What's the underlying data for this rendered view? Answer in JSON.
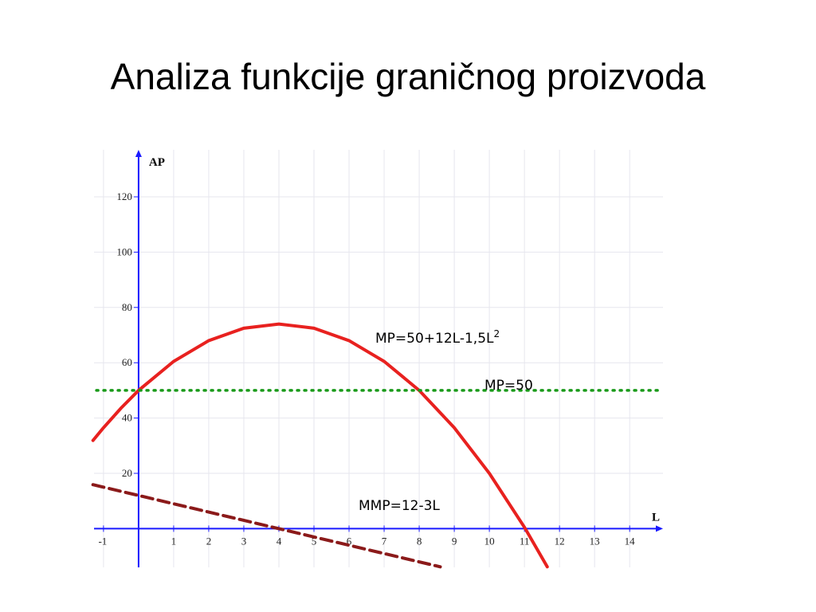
{
  "title": "Analiza funkcije graničnog proizvoda",
  "chart_data": {
    "type": "line",
    "x_label": "L",
    "y_label": "AP",
    "xlim": [
      -1.27,
      14.95
    ],
    "ylim": [
      -14,
      137
    ],
    "xticks": [
      -1,
      1,
      2,
      3,
      4,
      5,
      6,
      7,
      8,
      9,
      10,
      11,
      12,
      13,
      14
    ],
    "yticks": [
      20,
      40,
      60,
      80,
      100,
      120
    ],
    "grid": true,
    "axis_color": "#1a1aff",
    "series": [
      {
        "name": "MP=50+12L-1,5L²",
        "color": "#e8211f",
        "line_style": "solid",
        "x": [
          -1.3,
          -1,
          -0.5,
          0,
          1,
          2,
          3,
          4,
          5,
          6,
          7,
          8,
          9,
          10,
          11,
          11.65
        ],
        "values": [
          31.9,
          36.5,
          43.6,
          50,
          60.5,
          68,
          72.5,
          74,
          72.5,
          68,
          60.5,
          50,
          36.5,
          20,
          0.5,
          -13.8
        ]
      },
      {
        "name": "MP=50",
        "color": "#1a9a1a",
        "line_style": "dotted",
        "x": [
          -1.2,
          14.8
        ],
        "values": [
          50,
          50
        ]
      },
      {
        "name": "MMP=12-3L",
        "color": "#8b1a1a",
        "line_style": "dashed",
        "x": [
          -1.3,
          8.6
        ],
        "values": [
          15.9,
          -13.8
        ]
      }
    ],
    "annotations": [
      {
        "text": "MP=50+12L-1,5L",
        "sup": "2"
      },
      {
        "text": "MP=50"
      },
      {
        "text": "MMP=12-3L"
      }
    ]
  }
}
